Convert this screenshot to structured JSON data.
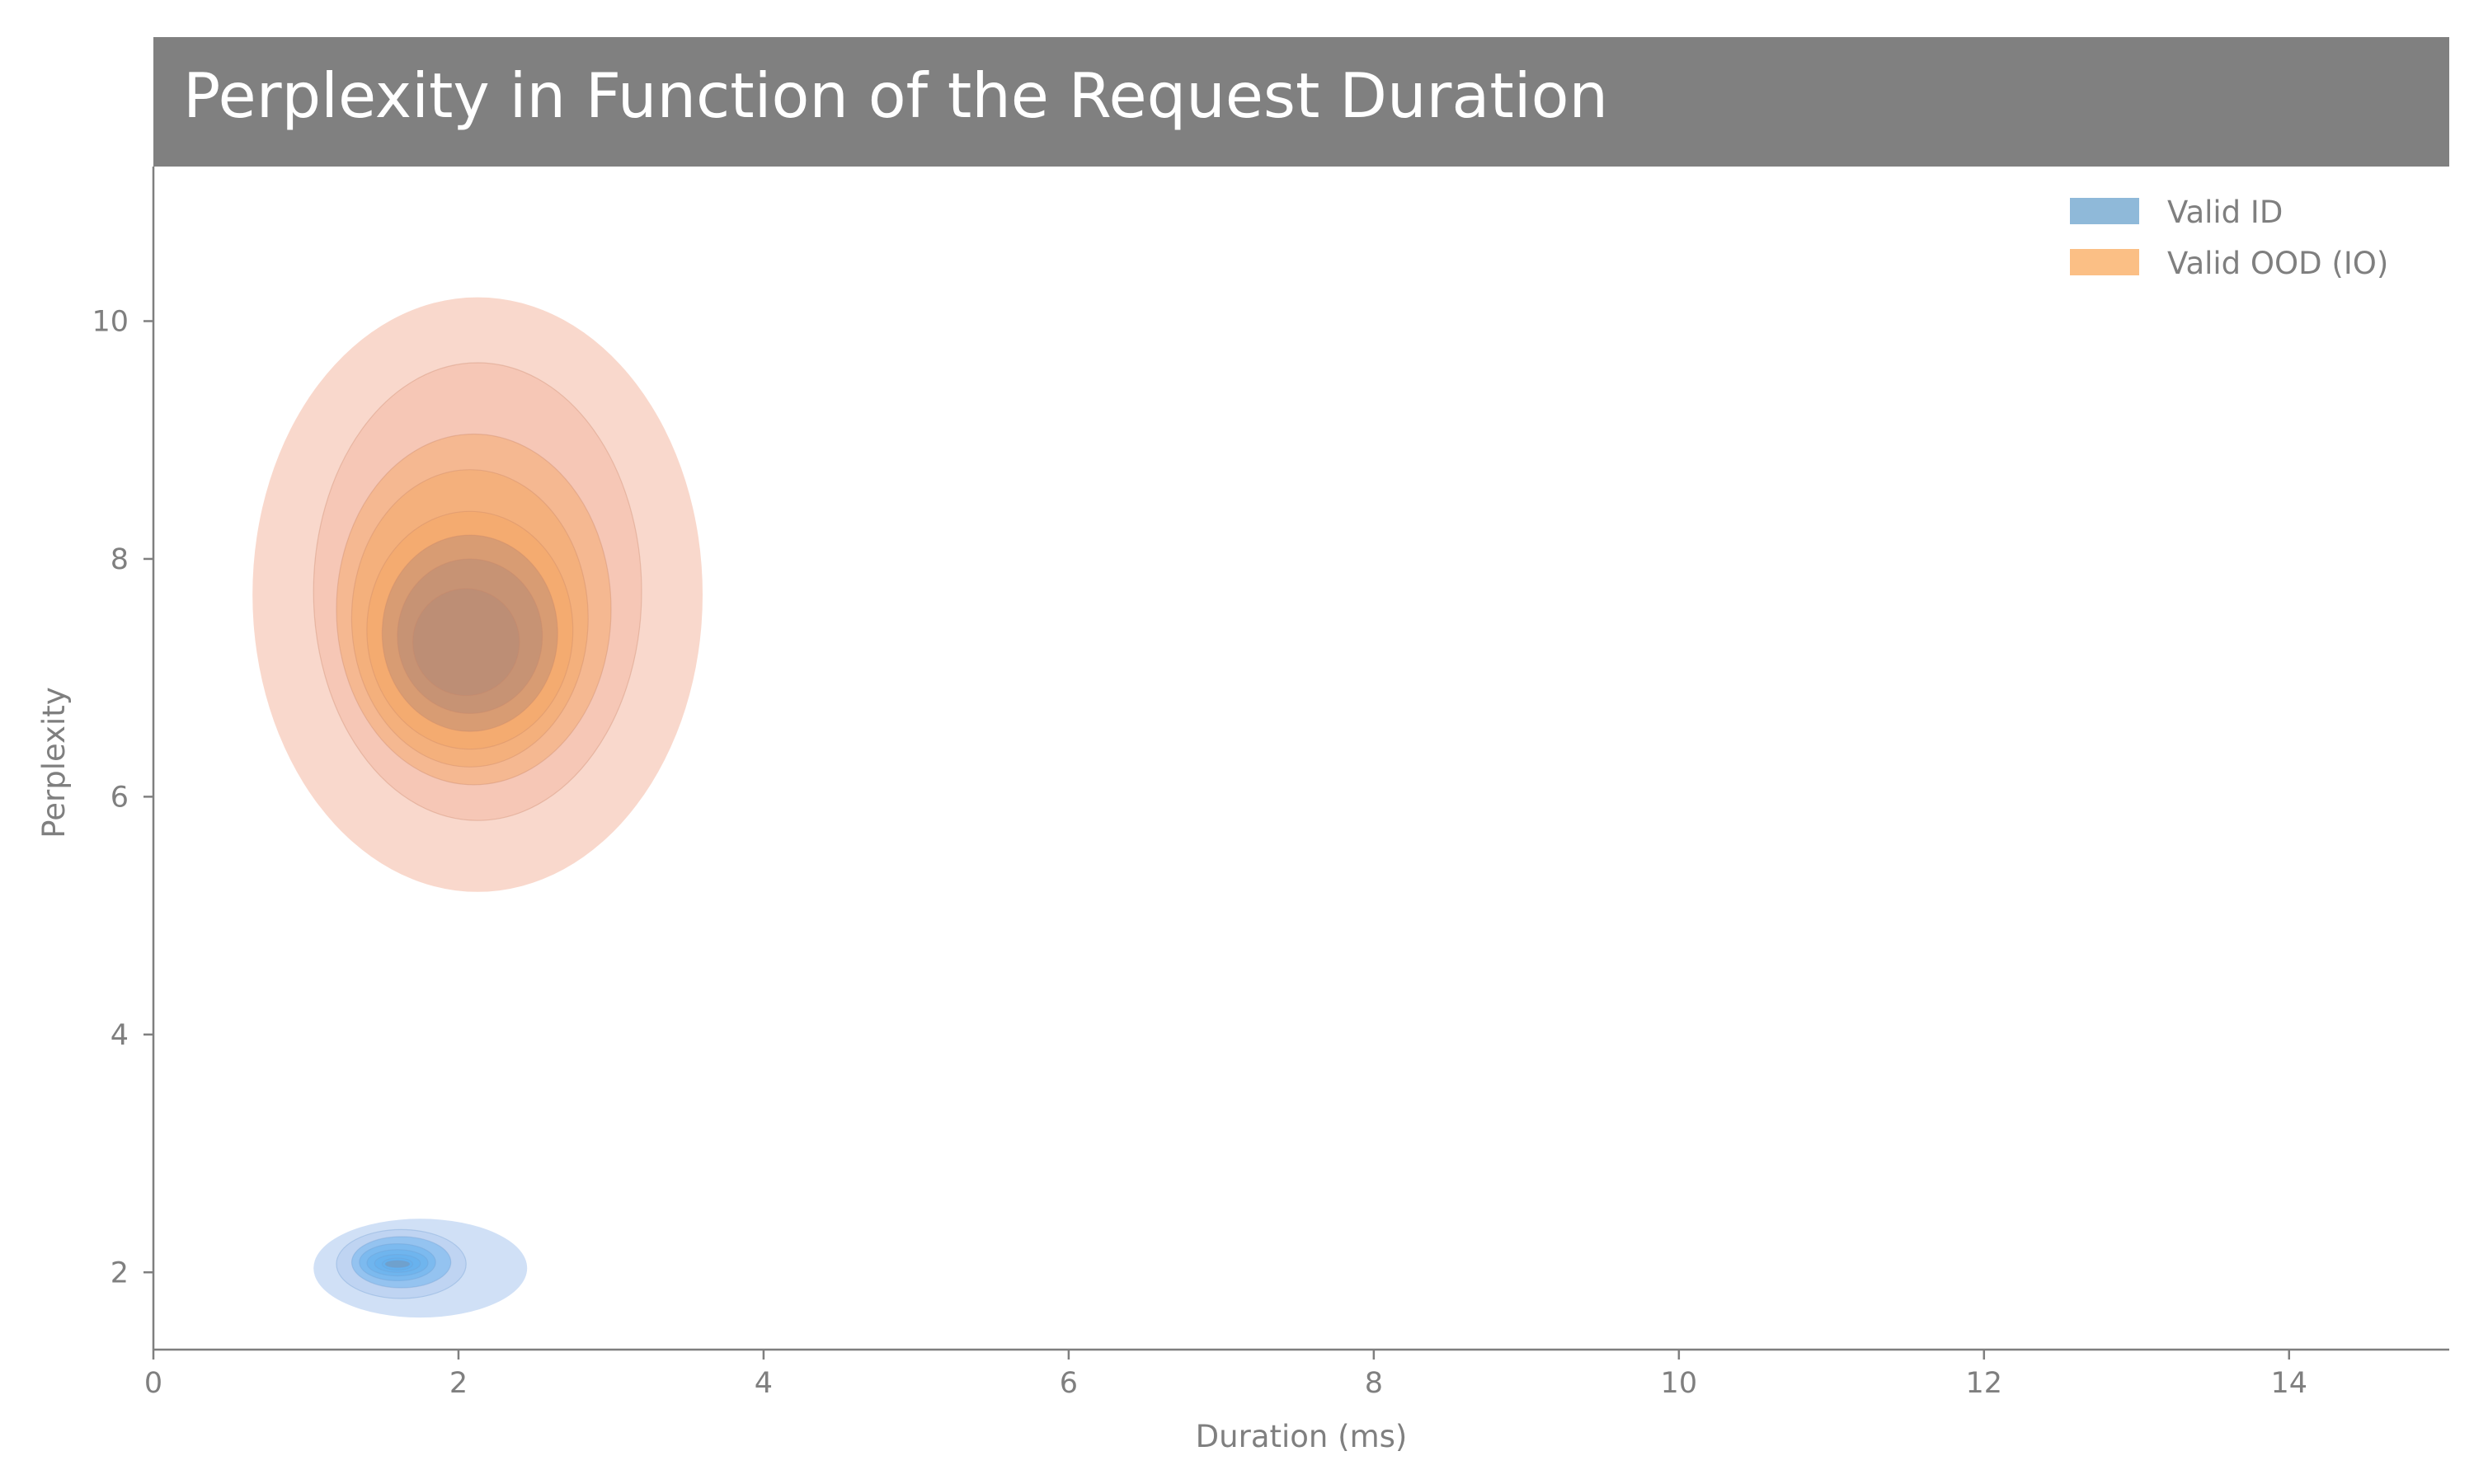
{
  "chart_data": {
    "type": "kde-contour",
    "title": "Perplexity in Function of the Request Duration",
    "xlabel": "Duration (ms)",
    "ylabel": "Perplexity",
    "xlim": [
      0,
      15.05
    ],
    "ylim": [
      1.35,
      11.3
    ],
    "xticks": [
      0,
      2,
      4,
      6,
      8,
      10,
      12,
      14
    ],
    "yticks": [
      2,
      4,
      6,
      8,
      10
    ],
    "grid": false,
    "legend_position": "top-right",
    "series": [
      {
        "name": "Valid ID",
        "color": "#4a90e2",
        "legend_color": "#8fb9d9",
        "center": [
          1.6,
          2.07
        ],
        "levels": [
          {
            "x": [
              1.05,
              2.45
            ],
            "y": [
              1.62,
              2.45
            ]
          },
          {
            "x": [
              1.2,
              2.05
            ],
            "y": [
              1.78,
              2.36
            ]
          },
          {
            "x": [
              1.3,
              1.95
            ],
            "y": [
              1.87,
              2.3
            ]
          },
          {
            "x": [
              1.35,
              1.85
            ],
            "y": [
              1.93,
              2.24
            ]
          },
          {
            "x": [
              1.4,
              1.8
            ],
            "y": [
              1.97,
              2.19
            ]
          },
          {
            "x": [
              1.45,
              1.75
            ],
            "y": [
              2.0,
              2.15
            ]
          },
          {
            "x": [
              1.5,
              1.7
            ],
            "y": [
              2.02,
              2.12
            ]
          },
          {
            "x": [
              1.52,
              1.68
            ],
            "y": [
              2.04,
              2.1
            ]
          }
        ]
      },
      {
        "name": "Valid OOD (IO)",
        "color": "#f4a582",
        "legend_color": "#fbbf85",
        "center": [
          2.05,
          7.3
        ],
        "levels": [
          {
            "x": [
              0.65,
              3.6
            ],
            "y": [
              5.2,
              10.2
            ]
          },
          {
            "x": [
              1.05,
              3.2
            ],
            "y": [
              5.8,
              9.65
            ]
          },
          {
            "x": [
              1.2,
              3.0
            ],
            "y": [
              6.1,
              9.05
            ]
          },
          {
            "x": [
              1.3,
              2.85
            ],
            "y": [
              6.25,
              8.75
            ]
          },
          {
            "x": [
              1.4,
              2.75
            ],
            "y": [
              6.4,
              8.4
            ]
          },
          {
            "x": [
              1.5,
              2.65
            ],
            "y": [
              6.55,
              8.2
            ]
          },
          {
            "x": [
              1.6,
              2.55
            ],
            "y": [
              6.7,
              8.0
            ]
          },
          {
            "x": [
              1.7,
              2.4
            ],
            "y": [
              6.85,
              7.75
            ]
          }
        ]
      }
    ]
  }
}
